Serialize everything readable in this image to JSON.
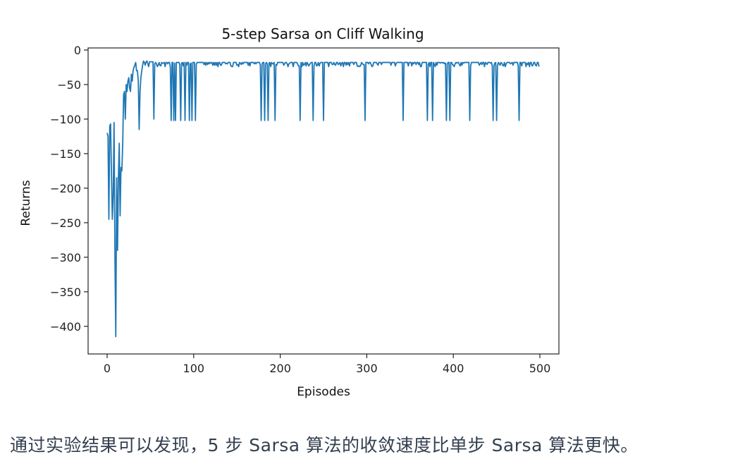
{
  "chart_data": {
    "type": "line",
    "title": "5-step Sarsa on Cliff Walking",
    "xlabel": "Episodes",
    "ylabel": "Returns",
    "xlim": [
      -22,
      522
    ],
    "ylim": [
      -440,
      3
    ],
    "xticks": [
      0,
      100,
      200,
      300,
      400,
      500
    ],
    "yticks": [
      0,
      -50,
      -100,
      -150,
      -200,
      -250,
      -300,
      -350,
      -400
    ],
    "xtick_labels": [
      "0",
      "100",
      "200",
      "300",
      "400",
      "500"
    ],
    "ytick_labels": [
      "0",
      "−50",
      "−100",
      "−150",
      "−200",
      "−250",
      "−300",
      "−350",
      "−400"
    ],
    "grid": false,
    "series": [
      {
        "color": "#1f77b4",
        "x_start": 0,
        "x_end": 499,
        "baseline_return": -18,
        "early_points": [
          [
            0,
            -120
          ],
          [
            1,
            -125
          ],
          [
            2,
            -245
          ],
          [
            3,
            -110
          ],
          [
            4,
            -107
          ],
          [
            5,
            -180
          ],
          [
            6,
            -245
          ],
          [
            7,
            -210
          ],
          [
            8,
            -105
          ],
          [
            9,
            -300
          ],
          [
            10,
            -415
          ],
          [
            11,
            -185
          ],
          [
            12,
            -290
          ],
          [
            13,
            -185
          ],
          [
            14,
            -135
          ],
          [
            15,
            -240
          ],
          [
            16,
            -170
          ],
          [
            17,
            -175
          ],
          [
            18,
            -135
          ],
          [
            19,
            -65
          ],
          [
            20,
            -60
          ],
          [
            21,
            -100
          ],
          [
            22,
            -50
          ],
          [
            23,
            -60
          ],
          [
            24,
            -45
          ],
          [
            25,
            -40
          ],
          [
            26,
            -55
          ],
          [
            27,
            -60
          ],
          [
            28,
            -35
          ],
          [
            29,
            -45
          ],
          [
            30,
            -30
          ],
          [
            31,
            -25
          ],
          [
            32,
            -22
          ],
          [
            33,
            -18
          ],
          [
            34,
            -30
          ],
          [
            35,
            -30
          ],
          [
            36,
            -45
          ],
          [
            37,
            -115
          ],
          [
            38,
            -60
          ],
          [
            39,
            -40
          ],
          [
            40,
            -30
          ],
          [
            41,
            -22
          ],
          [
            42,
            -16
          ],
          [
            43,
            -18
          ],
          [
            44,
            -22
          ],
          [
            45,
            -17
          ],
          [
            46,
            -16
          ],
          [
            47,
            -20
          ],
          [
            48,
            -24
          ],
          [
            49,
            -17
          ],
          [
            50,
            -17
          ],
          [
            51,
            -17
          ],
          [
            52,
            -17
          ],
          [
            53,
            -17
          ],
          [
            54,
            -100
          ],
          [
            55,
            -20
          ],
          [
            56,
            -18
          ]
        ],
        "dip_episodes": [
          74,
          77,
          79,
          85,
          90,
          95,
          98,
          102,
          178,
          182,
          186,
          194,
          223,
          238,
          250,
          298,
          342,
          370,
          376,
          392,
          396,
          419,
          446,
          450,
          476
        ],
        "dip_value": -102
      }
    ]
  },
  "caption": "通过实验结果可以发现，5 步 Sarsa 算法的收敛速度比单步 Sarsa 算法更快。"
}
